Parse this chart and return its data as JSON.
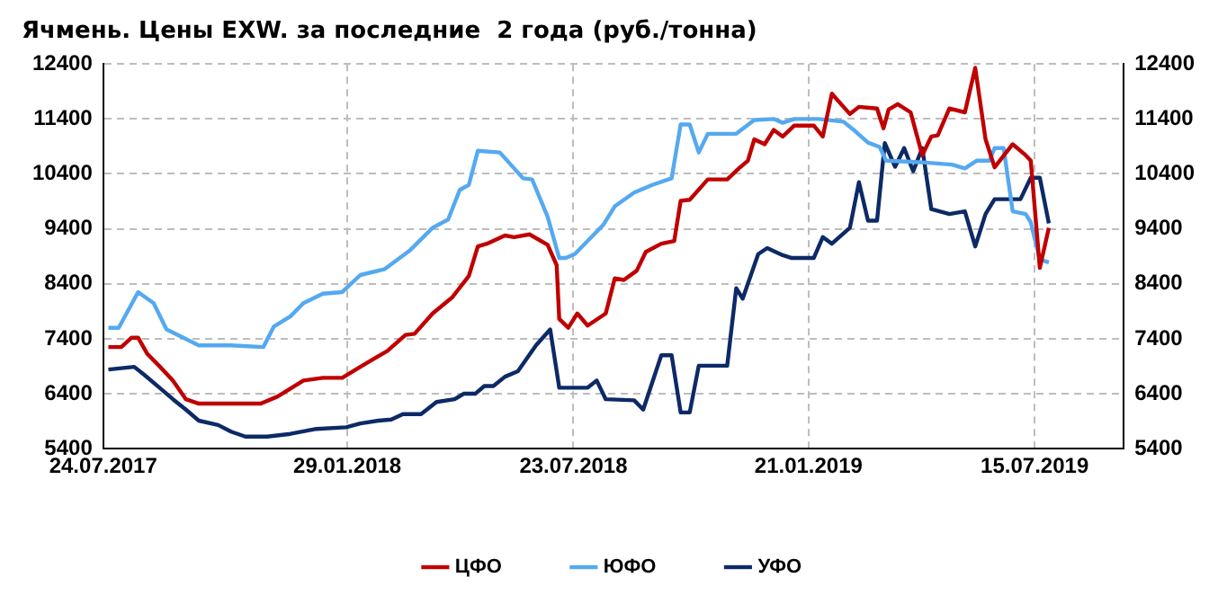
{
  "chart_data": {
    "type": "line",
    "title": "Ячмень. Цены EXW. за последние  2 года (руб./тонна)",
    "xlim": [
      "2017-07-24",
      "2019-09-22"
    ],
    "xticks": [
      {
        "value": "2017-07-24",
        "label": "24.07.2017"
      },
      {
        "value": "2018-01-29",
        "label": "29.01.2018"
      },
      {
        "value": "2018-07-23",
        "label": "23.07.2018"
      },
      {
        "value": "2019-01-21",
        "label": "21.01.2019"
      },
      {
        "value": "2019-07-15",
        "label": "15.07.2019"
      }
    ],
    "ylim": [
      5400,
      12400
    ],
    "yticks": [
      5400,
      6400,
      7400,
      8400,
      9400,
      10400,
      11400,
      12400
    ],
    "y2lim": [
      5400,
      12400
    ],
    "y2ticks": [
      5400,
      6400,
      7400,
      8400,
      9400,
      10400,
      11400,
      12400
    ],
    "grid": true,
    "line_style": "solid",
    "marker": "none",
    "legend": "bottom",
    "series": [
      {
        "name": "ЦФО",
        "color": "#c00000",
        "x": [
          "2017-07-28",
          "2017-08-07",
          "2017-08-15",
          "2017-08-20",
          "2017-08-27",
          "2017-09-06",
          "2017-09-16",
          "2017-09-26",
          "2017-10-06",
          "2017-10-31",
          "2017-11-23",
          "2017-12-06",
          "2017-12-26",
          "2018-01-10",
          "2018-01-25",
          "2018-02-08",
          "2018-02-18",
          "2018-03-01",
          "2018-03-15",
          "2018-03-22",
          "2018-04-05",
          "2018-04-20",
          "2018-05-03",
          "2018-05-10",
          "2018-05-17",
          "2018-05-31",
          "2018-06-07",
          "2018-06-19",
          "2018-07-03",
          "2018-07-10",
          "2018-07-12",
          "2018-07-19",
          "2018-07-26",
          "2018-08-03",
          "2018-08-17",
          "2018-08-24",
          "2018-08-31",
          "2018-09-10",
          "2018-09-17",
          "2018-09-29",
          "2018-10-09",
          "2018-10-14",
          "2018-10-21",
          "2018-11-04",
          "2018-11-19",
          "2018-11-28",
          "2018-12-05",
          "2018-12-10",
          "2018-12-18",
          "2018-12-25",
          "2019-01-01",
          "2019-01-10",
          "2019-01-25",
          "2019-02-01",
          "2019-02-08",
          "2019-02-22",
          "2019-03-01",
          "2019-03-15",
          "2019-03-20",
          "2019-03-24",
          "2019-03-31",
          "2019-04-10",
          "2019-04-19",
          "2019-04-26",
          "2019-05-01",
          "2019-05-10",
          "2019-05-22",
          "2019-05-30",
          "2019-06-07",
          "2019-06-14",
          "2019-06-28",
          "2019-07-08",
          "2019-07-12",
          "2019-07-19",
          "2019-07-26"
        ],
        "values": [
          7250,
          7250,
          7420,
          7420,
          7130,
          6890,
          6640,
          6300,
          6220,
          6220,
          6220,
          6350,
          6640,
          6690,
          6690,
          6890,
          7030,
          7180,
          7470,
          7490,
          7860,
          8150,
          8540,
          9080,
          9130,
          9280,
          9250,
          9300,
          9110,
          8740,
          7760,
          7600,
          7860,
          7640,
          7860,
          8500,
          8470,
          8640,
          8980,
          9130,
          9180,
          9910,
          9930,
          10300,
          10300,
          10500,
          10640,
          11030,
          10940,
          11200,
          11080,
          11280,
          11280,
          11080,
          11860,
          11490,
          11620,
          11590,
          11230,
          11570,
          11670,
          11520,
          10740,
          11080,
          11100,
          11590,
          11520,
          12330,
          11030,
          10520,
          10940,
          10740,
          10640,
          8690,
          9420
        ]
      },
      {
        "name": "ЮФО",
        "color": "#55a9f0",
        "x": [
          "2017-07-28",
          "2017-08-05",
          "2017-08-20",
          "2017-09-01",
          "2017-09-11",
          "2017-10-06",
          "2017-10-31",
          "2017-11-25",
          "2017-12-03",
          "2017-12-16",
          "2017-12-26",
          "2018-01-10",
          "2018-01-25",
          "2018-02-08",
          "2018-02-27",
          "2018-03-18",
          "2018-04-05",
          "2018-04-17",
          "2018-04-26",
          "2018-05-03",
          "2018-05-10",
          "2018-05-27",
          "2018-06-14",
          "2018-06-21",
          "2018-07-03",
          "2018-07-12",
          "2018-07-17",
          "2018-07-24",
          "2018-08-03",
          "2018-08-15",
          "2018-08-24",
          "2018-09-08",
          "2018-09-22",
          "2018-10-07",
          "2018-10-14",
          "2018-10-21",
          "2018-10-28",
          "2018-11-04",
          "2018-11-26",
          "2018-12-10",
          "2018-12-25",
          "2019-01-01",
          "2019-01-10",
          "2019-01-29",
          "2019-02-17",
          "2019-02-26",
          "2019-03-08",
          "2019-03-17",
          "2019-03-22",
          "2019-04-19",
          "2019-05-12",
          "2019-05-22",
          "2019-05-31",
          "2019-06-10",
          "2019-06-14",
          "2019-06-21",
          "2019-06-28",
          "2019-07-08",
          "2019-07-12",
          "2019-07-19",
          "2019-07-26"
        ],
        "values": [
          7600,
          7600,
          8250,
          8050,
          7570,
          7280,
          7280,
          7250,
          7620,
          7810,
          8050,
          8220,
          8250,
          8560,
          8670,
          9000,
          9420,
          9570,
          10110,
          10200,
          10820,
          10790,
          10320,
          10300,
          9620,
          8870,
          8870,
          8940,
          9180,
          9470,
          9810,
          10060,
          10200,
          10320,
          11300,
          11300,
          10790,
          11130,
          11130,
          11380,
          11400,
          11330,
          11400,
          11400,
          11350,
          11180,
          10970,
          10890,
          10640,
          10610,
          10570,
          10500,
          10640,
          10640,
          10870,
          10870,
          9720,
          9670,
          9520,
          8840,
          8790
        ]
      },
      {
        "name": "УФО",
        "color": "#0d2a66",
        "x": [
          "2017-07-28",
          "2017-08-17",
          "2017-08-25",
          "2017-09-06",
          "2017-09-16",
          "2017-09-26",
          "2017-10-06",
          "2017-10-21",
          "2017-10-31",
          "2017-11-11",
          "2017-11-28",
          "2017-12-16",
          "2018-01-05",
          "2018-01-28",
          "2018-02-08",
          "2018-02-22",
          "2018-03-04",
          "2018-03-13",
          "2018-03-27",
          "2018-04-08",
          "2018-04-22",
          "2018-04-29",
          "2018-05-08",
          "2018-05-15",
          "2018-05-22",
          "2018-05-31",
          "2018-06-10",
          "2018-06-24",
          "2018-07-05",
          "2018-07-12",
          "2018-08-03",
          "2018-08-10",
          "2018-08-17",
          "2018-09-08",
          "2018-09-15",
          "2018-09-29",
          "2018-10-07",
          "2018-10-14",
          "2018-10-21",
          "2018-10-28",
          "2018-11-19",
          "2018-11-26",
          "2018-12-01",
          "2018-12-13",
          "2018-12-20",
          "2019-01-01",
          "2019-01-08",
          "2019-01-25",
          "2019-02-01",
          "2019-02-08",
          "2019-02-22",
          "2019-03-01",
          "2019-03-08",
          "2019-03-15",
          "2019-03-21",
          "2019-03-29",
          "2019-04-05",
          "2019-04-12",
          "2019-04-19",
          "2019-04-26",
          "2019-05-10",
          "2019-05-22",
          "2019-05-30",
          "2019-06-07",
          "2019-06-14",
          "2019-07-04",
          "2019-07-12",
          "2019-07-19",
          "2019-07-26"
        ],
        "values": [
          6840,
          6890,
          6740,
          6500,
          6300,
          6110,
          5910,
          5830,
          5710,
          5620,
          5620,
          5670,
          5760,
          5790,
          5860,
          5910,
          5930,
          6030,
          6030,
          6250,
          6300,
          6400,
          6400,
          6540,
          6540,
          6710,
          6810,
          7280,
          7570,
          6510,
          6510,
          6640,
          6300,
          6280,
          6110,
          7100,
          7100,
          6060,
          6060,
          6910,
          6910,
          8320,
          8130,
          8940,
          9050,
          8920,
          8870,
          8870,
          9250,
          9130,
          9420,
          10250,
          9550,
          9550,
          10960,
          10530,
          10870,
          10450,
          10870,
          9760,
          9670,
          9720,
          9080,
          9670,
          9940,
          9940,
          10330,
          10330,
          9500
        ]
      }
    ]
  }
}
